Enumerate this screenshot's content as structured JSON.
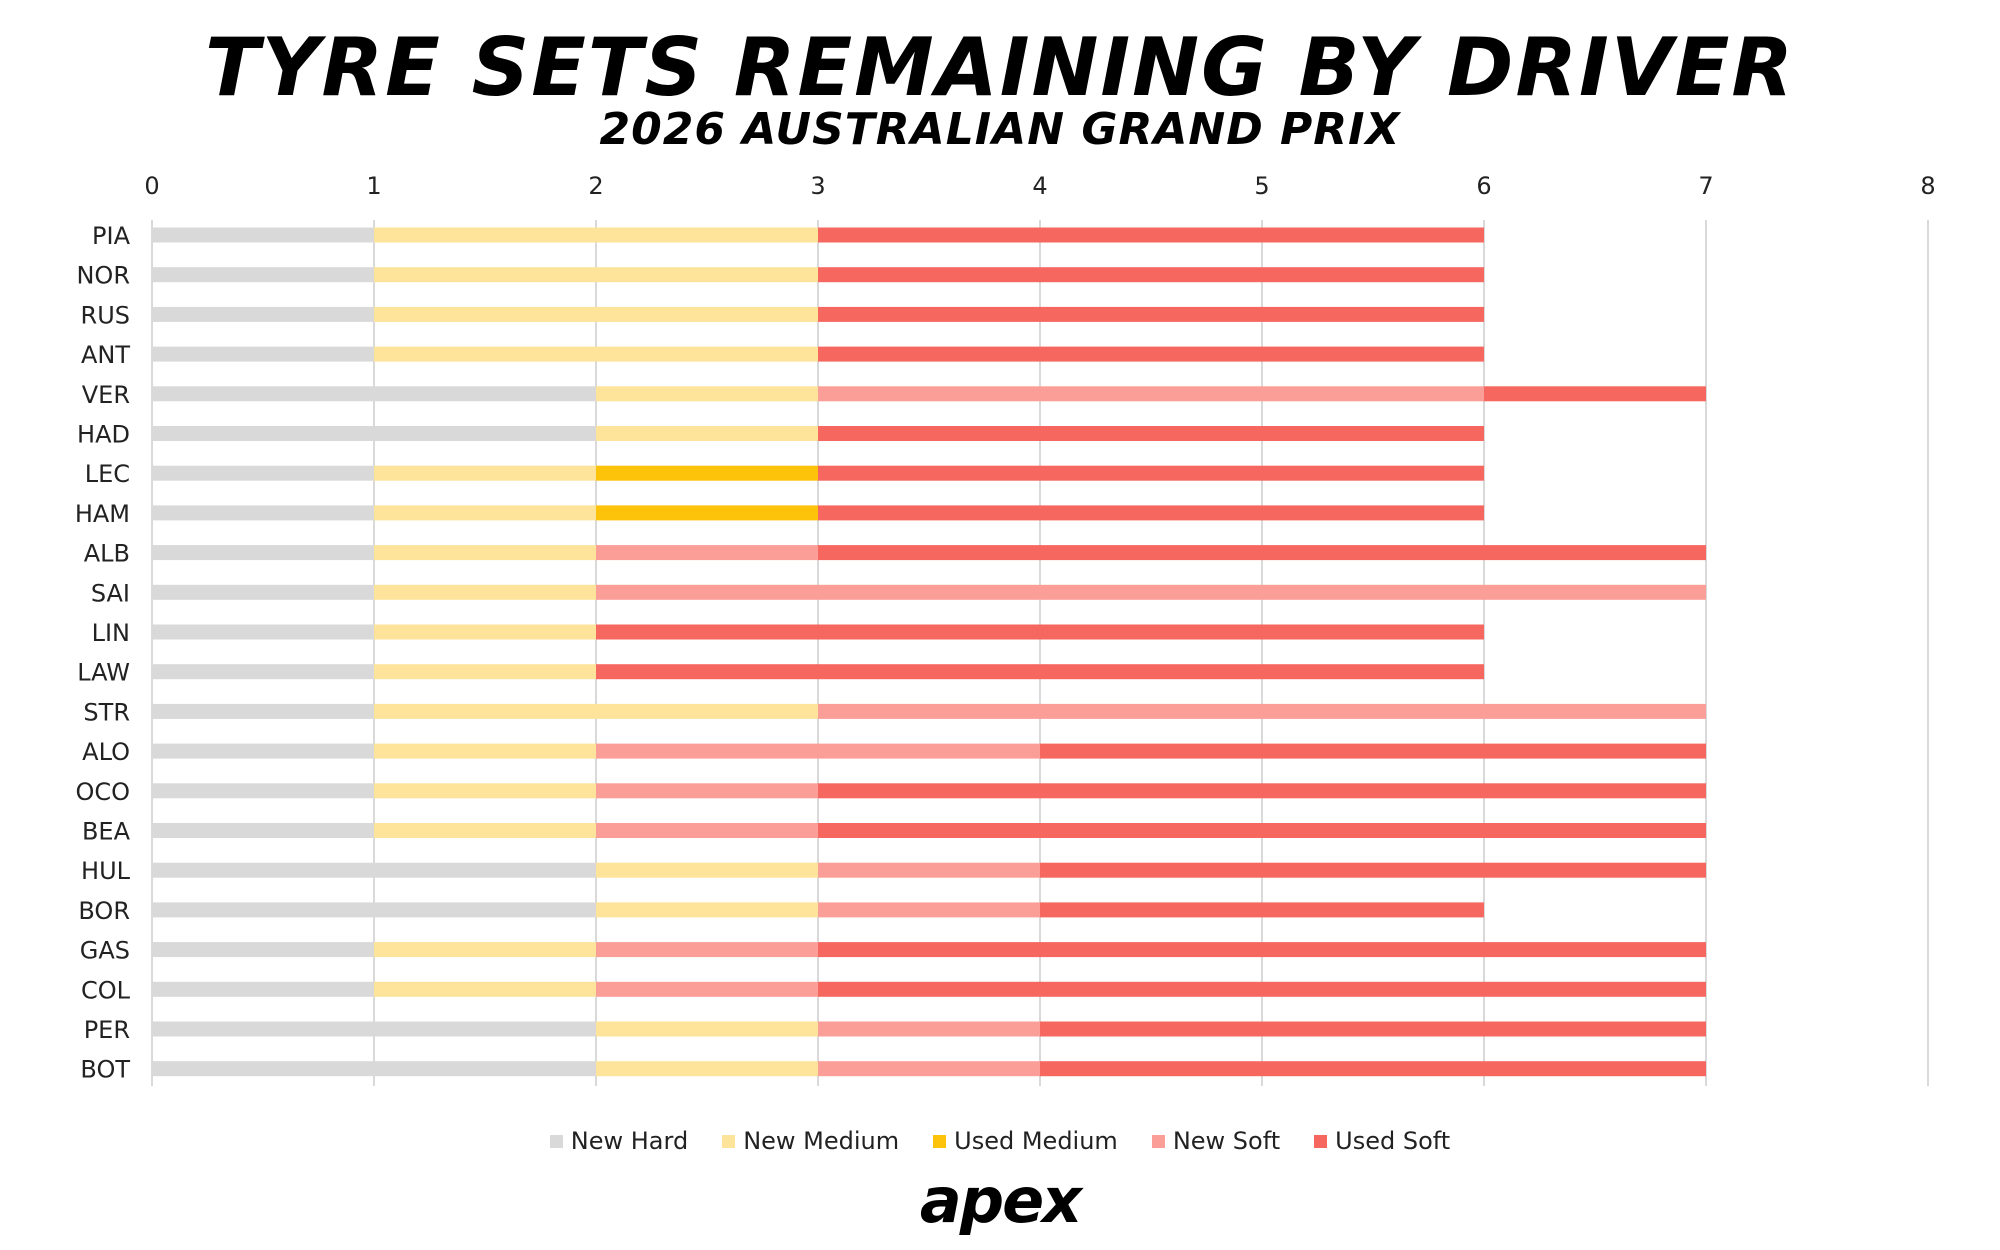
{
  "chart_data": {
    "type": "bar",
    "orientation": "horizontal",
    "stacked": true,
    "title": "TYRE SETS REMAINING BY DRIVER",
    "subtitle": "2026 AUSTRALIAN GRAND PRIX",
    "xlim": [
      0,
      8
    ],
    "xticks": [
      "0",
      "1",
      "2",
      "3",
      "4",
      "5",
      "6",
      "7",
      "8"
    ],
    "categories": [
      "PIA",
      "NOR",
      "RUS",
      "ANT",
      "VER",
      "HAD",
      "LEC",
      "HAM",
      "ALB",
      "SAI",
      "LIN",
      "LAW",
      "STR",
      "ALO",
      "OCO",
      "BEA",
      "HUL",
      "BOR",
      "GAS",
      "COL",
      "PER",
      "BOT"
    ],
    "series": [
      {
        "name": "New Hard",
        "color": "#d9d9d9",
        "values": [
          1,
          1,
          1,
          1,
          2,
          2,
          1,
          1,
          1,
          1,
          1,
          1,
          1,
          1,
          1,
          1,
          2,
          2,
          1,
          1,
          2,
          2
        ]
      },
      {
        "name": "New Medium",
        "color": "#fde49a",
        "values": [
          2,
          2,
          2,
          2,
          1,
          1,
          1,
          1,
          1,
          1,
          1,
          1,
          2,
          1,
          1,
          1,
          1,
          1,
          1,
          1,
          1,
          1
        ]
      },
      {
        "name": "Used Medium",
        "color": "#fdc20a",
        "values": [
          0,
          0,
          0,
          0,
          0,
          0,
          1,
          1,
          0,
          0,
          0,
          0,
          0,
          0,
          0,
          0,
          0,
          0,
          0,
          0,
          0,
          0
        ]
      },
      {
        "name": "New Soft",
        "color": "#fc9e98",
        "values": [
          0,
          0,
          0,
          0,
          3,
          0,
          0,
          0,
          1,
          5,
          0,
          0,
          4,
          2,
          1,
          1,
          1,
          1,
          1,
          1,
          1,
          1
        ]
      },
      {
        "name": "Used Soft",
        "color": "#f66760",
        "values": [
          3,
          3,
          3,
          3,
          1,
          3,
          3,
          3,
          4,
          0,
          4,
          4,
          0,
          3,
          4,
          4,
          3,
          2,
          4,
          4,
          3,
          3
        ]
      }
    ],
    "legend_position": "bottom-center",
    "grid": true
  },
  "brand": {
    "logo_text": "apex"
  }
}
